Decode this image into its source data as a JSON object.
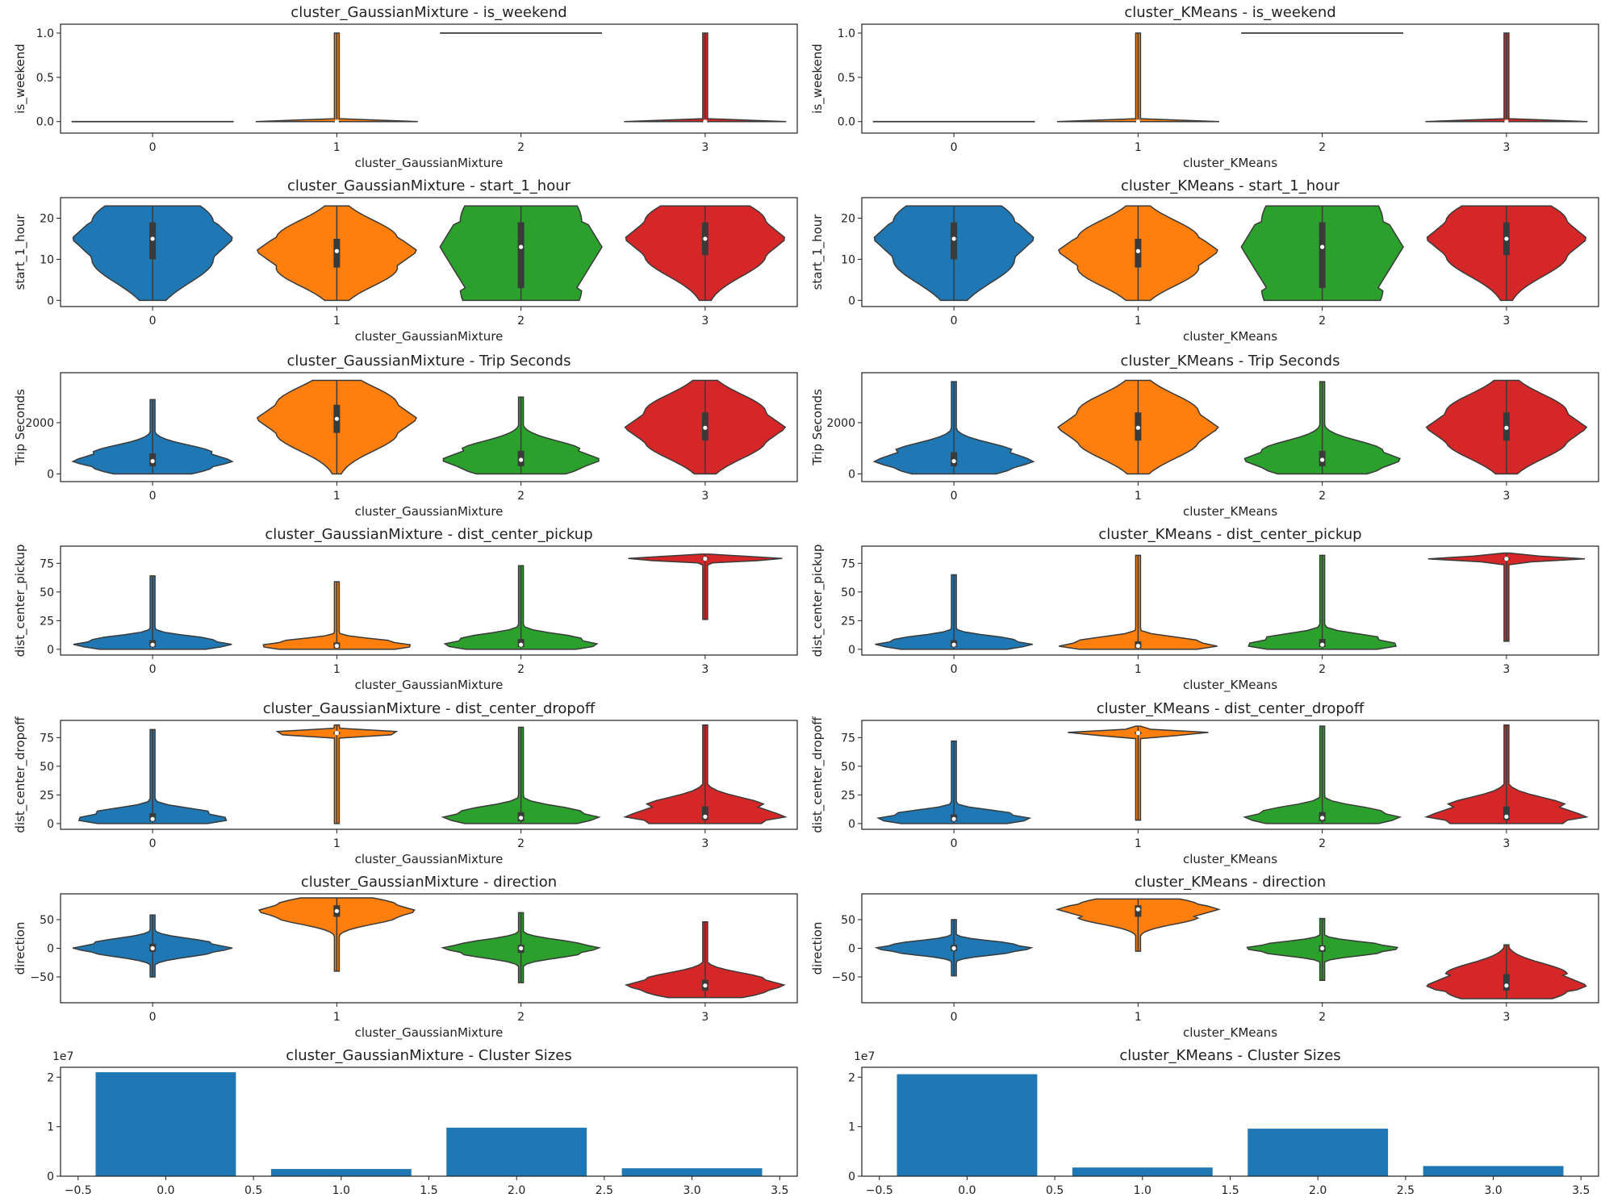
{
  "colors": {
    "cluster_0": "#1f77b4",
    "cluster_1": "#ff7f0e",
    "cluster_2": "#2ca02c",
    "cluster_3": "#d62728",
    "outline": "#3a3a3a",
    "bar": "#1f77b4"
  },
  "chart_data": [
    {
      "type": "violin",
      "title": "cluster_GaussianMixture - is_weekend",
      "xlabel": "cluster_GaussianMixture",
      "ylabel": "is_weekend",
      "categories": [
        "0",
        "1",
        "2",
        "3"
      ],
      "ylim": [
        -0.13,
        1.1
      ],
      "yticks": [
        0.0,
        0.5,
        1.0
      ],
      "ytick_labels": [
        "0.0",
        "0.5",
        "1.0"
      ],
      "grid": false,
      "series": [
        {
          "category": "0",
          "min": 0,
          "q1": 0,
          "median": 0,
          "q3": 0,
          "max": 0
        },
        {
          "category": "1",
          "min": 0,
          "q1": 0,
          "median": 0,
          "q3": 0,
          "max": 1
        },
        {
          "category": "2",
          "min": 1,
          "q1": 1,
          "median": 1,
          "q3": 1,
          "max": 1
        },
        {
          "category": "3",
          "min": 0,
          "q1": 0,
          "median": 0,
          "q3": 0,
          "max": 1
        }
      ]
    },
    {
      "type": "violin",
      "title": "cluster_KMeans - is_weekend",
      "xlabel": "cluster_KMeans",
      "ylabel": "is_weekend",
      "categories": [
        "0",
        "1",
        "2",
        "3"
      ],
      "ylim": [
        -0.13,
        1.1
      ],
      "yticks": [
        0.0,
        0.5,
        1.0
      ],
      "ytick_labels": [
        "0.0",
        "0.5",
        "1.0"
      ],
      "grid": false,
      "series": [
        {
          "category": "0",
          "min": 0,
          "q1": 0,
          "median": 0,
          "q3": 0,
          "max": 0
        },
        {
          "category": "1",
          "min": 0,
          "q1": 0,
          "median": 0,
          "q3": 0,
          "max": 1
        },
        {
          "category": "2",
          "min": 1,
          "q1": 1,
          "median": 1,
          "q3": 1,
          "max": 1
        },
        {
          "category": "3",
          "min": 0,
          "q1": 0,
          "median": 0,
          "q3": 0,
          "max": 1
        }
      ]
    },
    {
      "type": "violin",
      "title": "cluster_GaussianMixture - start_1_hour",
      "xlabel": "cluster_GaussianMixture",
      "ylabel": "start_1_hour",
      "categories": [
        "0",
        "1",
        "2",
        "3"
      ],
      "ylim": [
        -1.5,
        25
      ],
      "yticks": [
        0,
        10,
        20
      ],
      "ytick_labels": [
        "0",
        "10",
        "20"
      ],
      "grid": false,
      "series": [
        {
          "category": "0",
          "min": 0,
          "q1": 10,
          "median": 15,
          "q3": 19,
          "max": 23
        },
        {
          "category": "1",
          "min": 0,
          "q1": 8,
          "median": 12,
          "q3": 15,
          "max": 23
        },
        {
          "category": "2",
          "min": 0,
          "q1": 3,
          "median": 13,
          "q3": 19,
          "max": 23
        },
        {
          "category": "3",
          "min": 0,
          "q1": 11,
          "median": 15,
          "q3": 19,
          "max": 23
        }
      ]
    },
    {
      "type": "violin",
      "title": "cluster_KMeans - start_1_hour",
      "xlabel": "cluster_KMeans",
      "ylabel": "start_1_hour",
      "categories": [
        "0",
        "1",
        "2",
        "3"
      ],
      "ylim": [
        -1.5,
        25
      ],
      "yticks": [
        0,
        10,
        20
      ],
      "ytick_labels": [
        "0",
        "10",
        "20"
      ],
      "grid": false,
      "series": [
        {
          "category": "0",
          "min": 0,
          "q1": 10,
          "median": 15,
          "q3": 19,
          "max": 23
        },
        {
          "category": "1",
          "min": 0,
          "q1": 8,
          "median": 12,
          "q3": 15,
          "max": 23
        },
        {
          "category": "2",
          "min": 0,
          "q1": 3,
          "median": 13,
          "q3": 19,
          "max": 23
        },
        {
          "category": "3",
          "min": 0,
          "q1": 11,
          "median": 15,
          "q3": 19,
          "max": 23
        }
      ]
    },
    {
      "type": "violin",
      "title": "cluster_GaussianMixture - Trip Seconds",
      "xlabel": "cluster_GaussianMixture",
      "ylabel": "Trip Seconds",
      "categories": [
        "0",
        "1",
        "2",
        "3"
      ],
      "ylim": [
        -300,
        3950
      ],
      "yticks": [
        0,
        2000
      ],
      "ytick_labels": [
        "0",
        "2000"
      ],
      "grid": false,
      "series": [
        {
          "category": "0",
          "min": 0,
          "q1": 300,
          "median": 500,
          "q3": 800,
          "max": 2900
        },
        {
          "category": "1",
          "min": 0,
          "q1": 1600,
          "median": 2150,
          "q3": 2700,
          "max": 3650
        },
        {
          "category": "2",
          "min": 0,
          "q1": 300,
          "median": 550,
          "q3": 900,
          "max": 3000
        },
        {
          "category": "3",
          "min": 0,
          "q1": 1300,
          "median": 1800,
          "q3": 2400,
          "max": 3650
        }
      ]
    },
    {
      "type": "violin",
      "title": "cluster_KMeans - Trip Seconds",
      "xlabel": "cluster_KMeans",
      "ylabel": "Trip Seconds",
      "categories": [
        "0",
        "1",
        "2",
        "3"
      ],
      "ylim": [
        -300,
        3950
      ],
      "yticks": [
        0,
        2000
      ],
      "ytick_labels": [
        "0",
        "2000"
      ],
      "grid": false,
      "series": [
        {
          "category": "0",
          "min": 0,
          "q1": 300,
          "median": 500,
          "q3": 850,
          "max": 3600
        },
        {
          "category": "1",
          "min": 0,
          "q1": 1300,
          "median": 1800,
          "q3": 2400,
          "max": 3650
        },
        {
          "category": "2",
          "min": 0,
          "q1": 300,
          "median": 550,
          "q3": 900,
          "max": 3600
        },
        {
          "category": "3",
          "min": 0,
          "q1": 1300,
          "median": 1800,
          "q3": 2400,
          "max": 3650
        }
      ]
    },
    {
      "type": "violin",
      "title": "cluster_GaussianMixture - dist_center_pickup",
      "xlabel": "cluster_GaussianMixture",
      "ylabel": "dist_center_pickup",
      "categories": [
        "0",
        "1",
        "2",
        "3"
      ],
      "ylim": [
        -5,
        90
      ],
      "yticks": [
        0,
        25,
        50,
        75
      ],
      "ytick_labels": [
        "0",
        "25",
        "50",
        "75"
      ],
      "grid": false,
      "series": [
        {
          "category": "0",
          "min": 0,
          "q1": 2,
          "median": 4,
          "q3": 8,
          "max": 64
        },
        {
          "category": "1",
          "min": 0,
          "q1": 1,
          "median": 3,
          "q3": 6,
          "max": 59
        },
        {
          "category": "2",
          "min": 0,
          "q1": 2,
          "median": 4,
          "q3": 9,
          "max": 73
        },
        {
          "category": "3",
          "min": 26,
          "q1": 78,
          "median": 79,
          "q3": 80,
          "max": 83
        }
      ]
    },
    {
      "type": "violin",
      "title": "cluster_KMeans - dist_center_pickup",
      "xlabel": "cluster_KMeans",
      "ylabel": "dist_center_pickup",
      "categories": [
        "0",
        "1",
        "2",
        "3"
      ],
      "ylim": [
        -5,
        90
      ],
      "yticks": [
        0,
        25,
        50,
        75
      ],
      "ytick_labels": [
        "0",
        "25",
        "50",
        "75"
      ],
      "grid": false,
      "series": [
        {
          "category": "0",
          "min": 0,
          "q1": 2,
          "median": 4,
          "q3": 8,
          "max": 65
        },
        {
          "category": "1",
          "min": 0,
          "q1": 1,
          "median": 3,
          "q3": 7,
          "max": 82
        },
        {
          "category": "2",
          "min": 0,
          "q1": 2,
          "median": 4,
          "q3": 9,
          "max": 82
        },
        {
          "category": "3",
          "min": 7,
          "q1": 78,
          "median": 79,
          "q3": 80,
          "max": 84
        }
      ]
    },
    {
      "type": "violin",
      "title": "cluster_GaussianMixture - dist_center_dropoff",
      "xlabel": "cluster_GaussianMixture",
      "ylabel": "dist_center_dropoff",
      "categories": [
        "0",
        "1",
        "2",
        "3"
      ],
      "ylim": [
        -5,
        90
      ],
      "yticks": [
        0,
        25,
        50,
        75
      ],
      "ytick_labels": [
        "0",
        "25",
        "50",
        "75"
      ],
      "grid": false,
      "series": [
        {
          "category": "0",
          "min": 0,
          "q1": 2,
          "median": 4,
          "q3": 9,
          "max": 82
        },
        {
          "category": "1",
          "min": 0,
          "q1": 78,
          "median": 79,
          "q3": 80,
          "max": 86
        },
        {
          "category": "2",
          "min": 0,
          "q1": 2,
          "median": 5,
          "q3": 10,
          "max": 84
        },
        {
          "category": "3",
          "min": 0,
          "q1": 3,
          "median": 6,
          "q3": 15,
          "max": 86
        }
      ]
    },
    {
      "type": "violin",
      "title": "cluster_KMeans - dist_center_dropoff",
      "xlabel": "cluster_KMeans",
      "ylabel": "dist_center_dropoff",
      "categories": [
        "0",
        "1",
        "2",
        "3"
      ],
      "ylim": [
        -5,
        90
      ],
      "yticks": [
        0,
        25,
        50,
        75
      ],
      "ytick_labels": [
        "0",
        "25",
        "50",
        "75"
      ],
      "grid": false,
      "series": [
        {
          "category": "0",
          "min": 0,
          "q1": 2,
          "median": 4,
          "q3": 8,
          "max": 72
        },
        {
          "category": "1",
          "min": 3,
          "q1": 78,
          "median": 79,
          "q3": 80,
          "max": 85
        },
        {
          "category": "2",
          "min": 0,
          "q1": 2,
          "median": 5,
          "q3": 10,
          "max": 85
        },
        {
          "category": "3",
          "min": 0,
          "q1": 3,
          "median": 6,
          "q3": 15,
          "max": 86
        }
      ]
    },
    {
      "type": "violin",
      "title": "cluster_GaussianMixture - direction",
      "xlabel": "cluster_GaussianMixture",
      "ylabel": "direction",
      "categories": [
        "0",
        "1",
        "2",
        "3"
      ],
      "ylim": [
        -95,
        95
      ],
      "yticks": [
        -50,
        0,
        50
      ],
      "ytick_labels": [
        "−50",
        "0",
        "50"
      ],
      "grid": false,
      "series": [
        {
          "category": "0",
          "min": -50,
          "q1": -6,
          "median": 0,
          "q3": 8,
          "max": 58
        },
        {
          "category": "1",
          "min": -40,
          "q1": 55,
          "median": 65,
          "q3": 75,
          "max": 88
        },
        {
          "category": "2",
          "min": -60,
          "q1": -8,
          "median": 0,
          "q3": 6,
          "max": 62
        },
        {
          "category": "3",
          "min": -86,
          "q1": -74,
          "median": -65,
          "q3": -55,
          "max": 46
        }
      ]
    },
    {
      "type": "violin",
      "title": "cluster_KMeans - direction",
      "xlabel": "cluster_KMeans",
      "ylabel": "direction",
      "categories": [
        "0",
        "1",
        "2",
        "3"
      ],
      "ylim": [
        -95,
        95
      ],
      "yticks": [
        -50,
        0,
        50
      ],
      "ytick_labels": [
        "−50",
        "0",
        "50"
      ],
      "grid": false,
      "series": [
        {
          "category": "0",
          "min": -48,
          "q1": -5,
          "median": 0,
          "q3": 6,
          "max": 50
        },
        {
          "category": "1",
          "min": -5,
          "q1": 55,
          "median": 68,
          "q3": 75,
          "max": 86
        },
        {
          "category": "2",
          "min": -56,
          "q1": -6,
          "median": 0,
          "q3": 5,
          "max": 52
        },
        {
          "category": "3",
          "min": -88,
          "q1": -74,
          "median": -65,
          "q3": -45,
          "max": 6
        }
      ]
    },
    {
      "type": "bar",
      "title": "cluster_GaussianMixture - Cluster Sizes",
      "xlabel": "",
      "ylabel": "",
      "offset_label": "1e7",
      "x": [
        0,
        1,
        2,
        3
      ],
      "values": [
        21000000,
        1450000,
        9800000,
        1600000
      ],
      "xlim": [
        -0.6,
        3.6
      ],
      "ylim": [
        0,
        22000000
      ],
      "xticks": [
        -0.5,
        0.0,
        0.5,
        1.0,
        1.5,
        2.0,
        2.5,
        3.0,
        3.5
      ],
      "xtick_labels": [
        "−0.5",
        "0.0",
        "0.5",
        "1.0",
        "1.5",
        "2.0",
        "2.5",
        "3.0",
        "3.5"
      ],
      "yticks": [
        0,
        10000000,
        20000000
      ],
      "ytick_labels": [
        "0",
        "1",
        "2"
      ],
      "grid": false
    },
    {
      "type": "bar",
      "title": "cluster_KMeans - Cluster Sizes",
      "xlabel": "",
      "ylabel": "",
      "offset_label": "1e7",
      "x": [
        0,
        1,
        2,
        3
      ],
      "values": [
        20600000,
        1750000,
        9600000,
        2050000
      ],
      "xlim": [
        -0.6,
        3.6
      ],
      "ylim": [
        0,
        22000000
      ],
      "xticks": [
        -0.5,
        0.0,
        0.5,
        1.0,
        1.5,
        2.0,
        2.5,
        3.0,
        3.5
      ],
      "xtick_labels": [
        "−0.5",
        "0.0",
        "0.5",
        "1.0",
        "1.5",
        "2.0",
        "2.5",
        "3.0",
        "3.5"
      ],
      "yticks": [
        0,
        10000000,
        20000000
      ],
      "ytick_labels": [
        "0",
        "1",
        "2"
      ],
      "grid": false
    }
  ]
}
